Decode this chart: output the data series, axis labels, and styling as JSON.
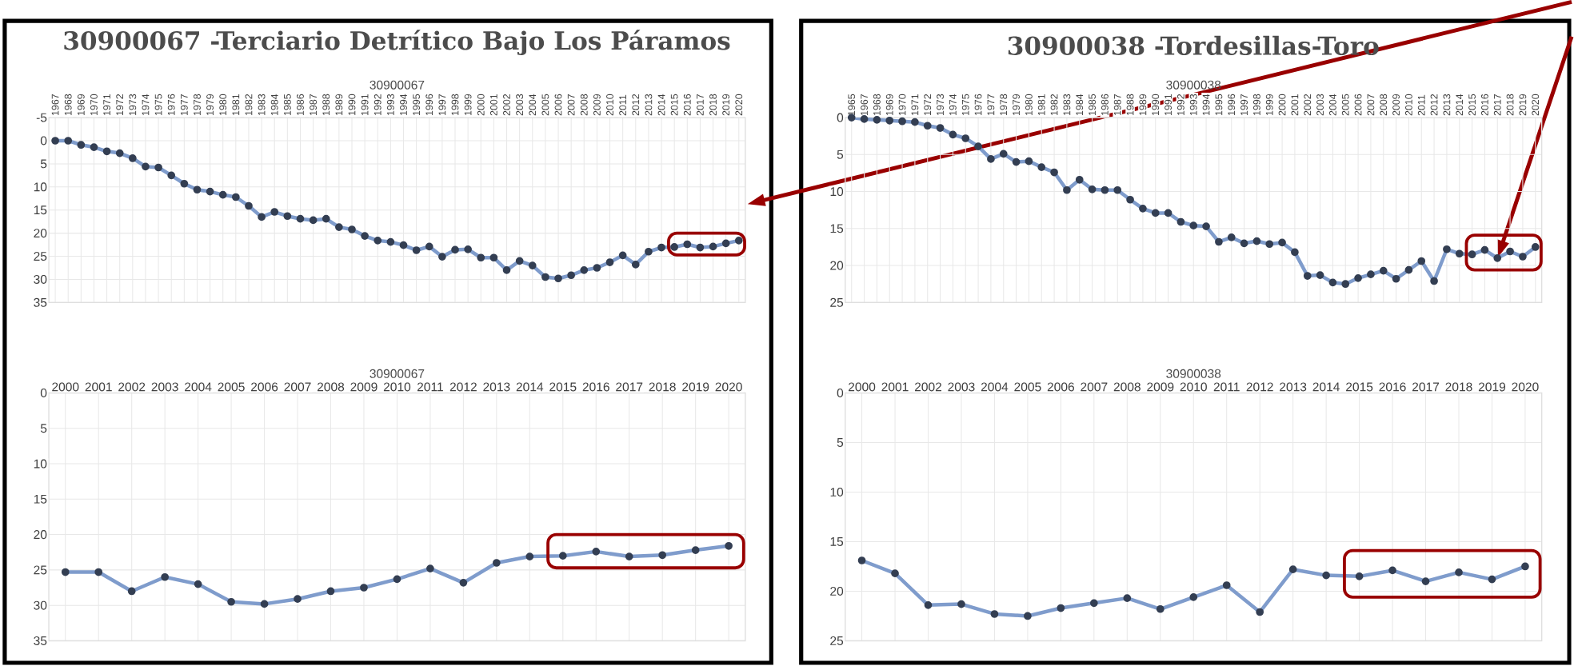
{
  "chart_data": [
    {
      "type": "line",
      "title": "30900067 -Terciario Detrítico Bajo Los Páramos",
      "subtitle": "30900067",
      "categories": [
        "1967",
        "1968",
        "1969",
        "1970",
        "1971",
        "1972",
        "1973",
        "1974",
        "1975",
        "1976",
        "1977",
        "1978",
        "1979",
        "1980",
        "1981",
        "1982",
        "1983",
        "1984",
        "1985",
        "1986",
        "1987",
        "1988",
        "1989",
        "1990",
        "1991",
        "1992",
        "1993",
        "1994",
        "1995",
        "1996",
        "1997",
        "1998",
        "1999",
        "2000",
        "2001",
        "2002",
        "2003",
        "2004",
        "2005",
        "2006",
        "2007",
        "2008",
        "2009",
        "2010",
        "2011",
        "2012",
        "2013",
        "2014",
        "2015",
        "2016",
        "2017",
        "2018",
        "2019",
        "2020"
      ],
      "values": [
        0,
        0,
        0.9,
        1.4,
        2.3,
        2.7,
        3.8,
        5.6,
        5.8,
        7.5,
        9.3,
        10.6,
        11.0,
        11.7,
        12.2,
        14.1,
        16.5,
        15.4,
        16.3,
        16.9,
        17.2,
        16.9,
        18.7,
        19.2,
        20.6,
        21.6,
        21.9,
        22.6,
        23.7,
        22.9,
        25.1,
        23.6,
        23.5,
        25.3,
        25.3,
        28,
        26,
        27,
        29.5,
        29.8,
        29.1,
        28,
        27.5,
        26.3,
        24.8,
        26.8,
        24,
        23.1,
        23,
        22.4,
        23.1,
        22.9,
        22.2,
        21.6
      ],
      "color": "#7f9ccc",
      "marker": "circle",
      "line_style": "solid",
      "grid": true,
      "ylim": [
        35,
        -5
      ],
      "yticks": [
        -5,
        0,
        5,
        10,
        15,
        20,
        25,
        30,
        35
      ]
    },
    {
      "type": "line",
      "title": "30900038 -Tordesillas-Toro",
      "subtitle": "30900038",
      "categories": [
        "1965",
        "1967",
        "1968",
        "1969",
        "1970",
        "1971",
        "1972",
        "1973",
        "1974",
        "1975",
        "1976",
        "1977",
        "1978",
        "1979",
        "1980",
        "1981",
        "1982",
        "1983",
        "1984",
        "1985",
        "1986",
        "1987",
        "1988",
        "1989",
        "1990",
        "1991",
        "1992",
        "1993",
        "1994",
        "1995",
        "1996",
        "1997",
        "1998",
        "1999",
        "2000",
        "2001",
        "2002",
        "2003",
        "2004",
        "2005",
        "2006",
        "2007",
        "2008",
        "2009",
        "2010",
        "2011",
        "2012",
        "2013",
        "2014",
        "2015",
        "2016",
        "2017",
        "2018",
        "2019",
        "2020"
      ],
      "values": [
        0,
        0.2,
        0.3,
        0.4,
        0.5,
        0.6,
        1.1,
        1.4,
        2.3,
        2.8,
        3.9,
        5.6,
        4.9,
        6.0,
        5.9,
        6.7,
        7.4,
        9.8,
        8.4,
        9.7,
        9.8,
        9.8,
        11.1,
        12.3,
        12.9,
        12.9,
        14.1,
        14.6,
        14.7,
        16.8,
        16.2,
        17.0,
        16.7,
        17.1,
        16.9,
        18.2,
        21.4,
        21.3,
        22.3,
        22.5,
        21.7,
        21.2,
        20.7,
        21.8,
        20.6,
        19.4,
        22.1,
        17.8,
        18.4,
        18.5,
        17.9,
        19.0,
        18.1,
        18.8,
        17.5
      ],
      "color": "#7f9ccc",
      "marker": "circle",
      "line_style": "solid",
      "grid": true,
      "ylim": [
        25,
        0
      ],
      "yticks": [
        0,
        5,
        10,
        15,
        20,
        25
      ]
    },
    {
      "type": "line",
      "subtitle": "30900067",
      "categories": [
        "2000",
        "2001",
        "2002",
        "2003",
        "2004",
        "2005",
        "2006",
        "2007",
        "2008",
        "2009",
        "2010",
        "2011",
        "2012",
        "2013",
        "2014",
        "2015",
        "2016",
        "2017",
        "2018",
        "2019",
        "2020"
      ],
      "values": [
        25.3,
        25.3,
        28,
        26,
        27,
        29.5,
        29.8,
        29.1,
        28,
        27.5,
        26.3,
        24.8,
        26.8,
        24,
        23.1,
        23,
        22.4,
        23.1,
        22.9,
        22.2,
        21.6
      ],
      "color": "#7f9ccc",
      "marker": "circle",
      "line_style": "solid",
      "grid": true,
      "ylim": [
        35,
        0
      ],
      "yticks": [
        0,
        5,
        10,
        15,
        20,
        25,
        30,
        35
      ]
    },
    {
      "type": "line",
      "subtitle": "30900038",
      "categories": [
        "2000",
        "2001",
        "2002",
        "2003",
        "2004",
        "2005",
        "2006",
        "2007",
        "2008",
        "2009",
        "2010",
        "2011",
        "2012",
        "2013",
        "2014",
        "2015",
        "2016",
        "2017",
        "2018",
        "2019",
        "2020"
      ],
      "values": [
        16.9,
        18.2,
        21.4,
        21.3,
        22.3,
        22.5,
        21.7,
        21.2,
        20.7,
        21.8,
        20.6,
        19.4,
        22.1,
        17.8,
        18.4,
        18.5,
        17.9,
        19.0,
        18.1,
        18.8,
        17.5
      ],
      "color": "#7f9ccc",
      "marker": "circle",
      "line_style": "solid",
      "grid": true,
      "ylim": [
        25,
        0
      ],
      "yticks": [
        0,
        5,
        10,
        15,
        20,
        25
      ]
    }
  ]
}
